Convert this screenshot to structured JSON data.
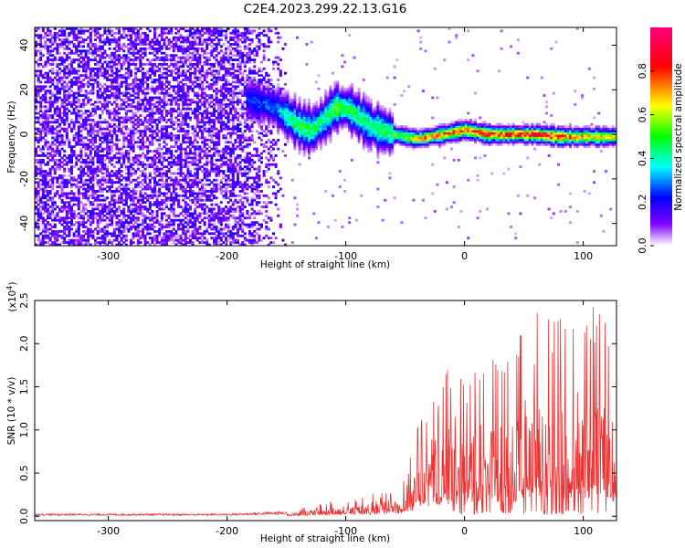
{
  "figure_title": "C2E4.2023.299.22.13.G16",
  "chart_data": [
    {
      "type": "heatmap",
      "title": "",
      "xlabel": "Height of straight line (km)",
      "ylabel": "Frequency (Hz)",
      "xlim": [
        -362,
        128
      ],
      "ylim": [
        -50,
        48
      ],
      "x_ticks": [
        -300,
        -200,
        -100,
        0,
        100
      ],
      "x_tick_labels": [
        "-300",
        "-200",
        "-100",
        "0",
        "100"
      ],
      "y_ticks": [
        -40,
        -20,
        0,
        20,
        40
      ],
      "y_tick_labels": [
        "-40",
        "-20",
        "0",
        "20",
        "40"
      ],
      "colorbar": {
        "label": "Normalized spectral amplitude",
        "range": [
          0,
          1
        ],
        "ticks": [
          0.0,
          0.2,
          0.4,
          0.6,
          0.8
        ],
        "tick_labels": [
          "0.0",
          "0.2",
          "0.4",
          "0.6",
          "0.8"
        ],
        "colors": [
          "#ffffff",
          "#8000ff",
          "#0000ff",
          "#00ffff",
          "#00ff00",
          "#ffff00",
          "#ff0000",
          "#ff0080"
        ]
      },
      "features": {
        "broadband_noise_x_range": [
          -362,
          -150
        ],
        "signal_trace": {
          "x": [
            -185,
            -160,
            -150,
            -140,
            -130,
            -120,
            -110,
            -100,
            -90,
            -80,
            -70,
            -60,
            -50,
            -40,
            -30,
            -20,
            -10,
            0,
            10,
            20,
            40,
            60,
            80,
            100,
            128
          ],
          "center_freq": [
            16,
            12,
            8,
            4,
            2,
            6,
            12,
            12,
            8,
            4,
            2,
            0,
            -1,
            -2,
            -1,
            0,
            1,
            2,
            1,
            0,
            0,
            0,
            -1,
            -1,
            -1
          ],
          "peak_amplitude": [
            0.25,
            0.3,
            0.45,
            0.5,
            0.5,
            0.45,
            0.55,
            0.5,
            0.5,
            0.45,
            0.5,
            0.55,
            0.6,
            0.75,
            0.8,
            0.8,
            0.8,
            0.85,
            0.85,
            0.85,
            0.9,
            0.9,
            0.85,
            0.75,
            0.65
          ]
        }
      },
      "grid": false
    },
    {
      "type": "line",
      "title": "",
      "xlabel": "Height of straight line (km)",
      "ylabel": "SNR (10 * v/v)",
      "y_scale_label": "(x10",
      "y_scale_exp": "4",
      "y_scale_close": ")",
      "xlim": [
        -362,
        128
      ],
      "ylim": [
        -0.05,
        2.5
      ],
      "x_ticks": [
        -300,
        -200,
        -100,
        0,
        100
      ],
      "x_tick_labels": [
        "-300",
        "-200",
        "-100",
        "0",
        "100"
      ],
      "y_ticks": [
        0.0,
        0.5,
        1.0,
        1.5,
        2.0,
        2.5
      ],
      "y_tick_labels": [
        "0.0",
        "0.5",
        "1.0",
        "1.5",
        "2.0",
        "2.5"
      ],
      "series": [
        {
          "color": "#ee3333",
          "envelope_x": [
            -362,
            -200,
            -150,
            -130,
            -110,
            -90,
            -70,
            -55,
            -45,
            -40,
            -30,
            -20,
            -10,
            0,
            10,
            20,
            30,
            40,
            50,
            60,
            70,
            80,
            90,
            100,
            110,
            120,
            128
          ],
          "envelope_max": [
            0.03,
            0.03,
            0.06,
            0.12,
            0.18,
            0.22,
            0.3,
            0.4,
            0.7,
            1.05,
            1.25,
            1.5,
            1.85,
            1.5,
            1.75,
            1.95,
            1.7,
            1.9,
            2.3,
            2.45,
            2.4,
            2.3,
            2.2,
            2.1,
            2.5,
            2.2,
            1.3
          ]
        }
      ],
      "grid": false
    }
  ]
}
